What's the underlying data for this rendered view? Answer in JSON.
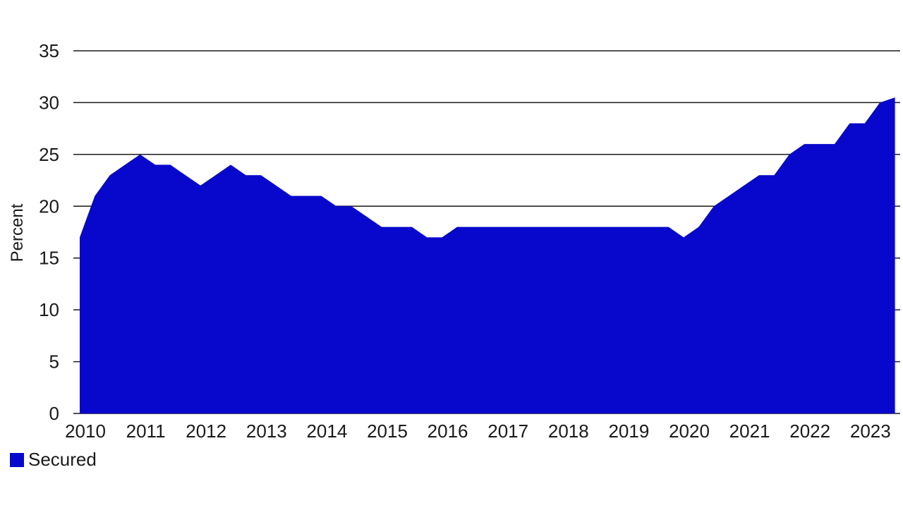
{
  "chart_data": {
    "type": "area",
    "title": "",
    "xlabel": "",
    "ylabel": "Percent",
    "ylim": [
      0,
      35
    ],
    "xlim": [
      2010.0,
      2023.6
    ],
    "grid": "horizontal",
    "legend_position": "bottom-left",
    "yticks": [
      "0",
      "5",
      "10",
      "15",
      "20",
      "25",
      "30",
      "35"
    ],
    "xticks": [
      "2010",
      "2011",
      "2012",
      "2013",
      "2014",
      "2015",
      "2016",
      "2017",
      "2018",
      "2019",
      "2020",
      "2021",
      "2022",
      "2023"
    ],
    "series": [
      {
        "name": "Secured",
        "color": "#0808cc",
        "x": [
          2010.0,
          2010.25,
          2010.5,
          2010.75,
          2011.0,
          2011.25,
          2011.5,
          2011.75,
          2012.0,
          2012.25,
          2012.5,
          2012.75,
          2013.0,
          2013.25,
          2013.5,
          2013.75,
          2014.0,
          2014.25,
          2014.5,
          2014.75,
          2015.0,
          2015.25,
          2015.5,
          2015.75,
          2016.0,
          2016.25,
          2016.5,
          2016.75,
          2017.0,
          2017.25,
          2017.5,
          2017.75,
          2018.0,
          2018.25,
          2018.5,
          2018.75,
          2019.0,
          2019.25,
          2019.5,
          2019.75,
          2020.0,
          2020.25,
          2020.5,
          2020.75,
          2021.0,
          2021.25,
          2021.5,
          2021.75,
          2022.0,
          2022.25,
          2022.5,
          2022.75,
          2023.0,
          2023.25,
          2023.5
        ],
        "values": [
          17,
          21,
          23,
          24,
          25,
          24,
          24,
          23,
          22,
          23,
          24,
          23,
          23,
          22,
          21,
          21,
          21,
          20,
          20,
          19,
          18,
          18,
          18,
          17,
          17,
          18,
          18,
          18,
          18,
          18,
          18,
          18,
          18,
          18,
          18,
          18,
          18,
          18,
          18,
          18,
          17,
          18,
          20,
          21,
          22,
          23,
          23,
          25,
          26,
          26,
          26,
          28,
          28,
          30,
          30.5
        ]
      }
    ]
  }
}
